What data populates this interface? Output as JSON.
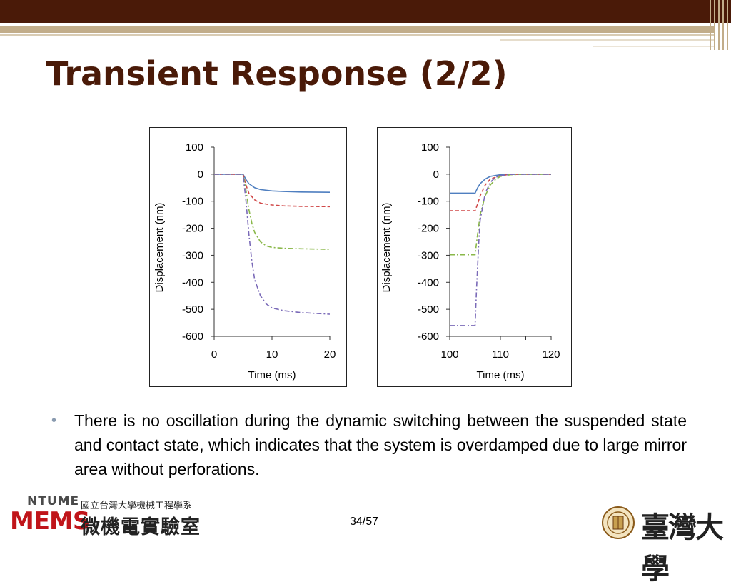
{
  "slide": {
    "title": "Transient Response (2/2)",
    "bullet": "There is no oscillation during the dynamic switching between the suspended state and contact state, which indicates that the system is overdamped due to large mirror area without perforations.",
    "page_number": "34/57",
    "logo_left_small": "NTUME",
    "logo_left_big": "MEMS",
    "dept_small": "國立台灣大學機械工程學系",
    "dept_big": "微機電實驗室",
    "university": "臺灣大學"
  },
  "colors": {
    "topbar": "#4a1a08",
    "title": "#4a1a08",
    "series": [
      "#4f7fc0",
      "#d04848",
      "#8ab84a",
      "#7a6ab8"
    ]
  },
  "chart_data": [
    {
      "type": "line",
      "xlabel": "Time (ms)",
      "ylabel": "Displacement (nm)",
      "xlim": [
        0,
        20
      ],
      "ylim": [
        -600,
        100
      ],
      "xticks": [
        0,
        10,
        20
      ],
      "yticks": [
        100,
        0,
        -100,
        -200,
        -300,
        -400,
        -500,
        -600
      ],
      "grid": false,
      "series": [
        {
          "line_style": "solid",
          "color": "#4f7fc0",
          "x": [
            0,
            5,
            5.5,
            6,
            7,
            8,
            10,
            12,
            15,
            20
          ],
          "y": [
            0,
            0,
            -20,
            -35,
            -50,
            -57,
            -62,
            -64,
            -66,
            -67
          ]
        },
        {
          "line_style": "dashed",
          "color": "#d04848",
          "x": [
            0,
            5,
            5.5,
            6,
            7,
            8,
            10,
            12,
            15,
            20
          ],
          "y": [
            0,
            0,
            -40,
            -70,
            -95,
            -107,
            -114,
            -117,
            -119,
            -120
          ]
        },
        {
          "line_style": "dash-dot",
          "color": "#8ab84a",
          "x": [
            0,
            5,
            5.5,
            6,
            6.5,
            7,
            8,
            9,
            10,
            12,
            15,
            20
          ],
          "y": [
            0,
            0,
            -60,
            -130,
            -180,
            -215,
            -250,
            -265,
            -271,
            -274,
            -276,
            -278
          ]
        },
        {
          "line_style": "dash-dot",
          "color": "#7a6ab8",
          "x": [
            0,
            5,
            5.5,
            6,
            6.5,
            7,
            8,
            9,
            10,
            12,
            15,
            20
          ],
          "y": [
            0,
            0,
            -100,
            -220,
            -320,
            -390,
            -450,
            -480,
            -495,
            -505,
            -512,
            -518
          ]
        }
      ]
    },
    {
      "type": "line",
      "xlabel": "Time (ms)",
      "ylabel": "Displacement (nm)",
      "xlim": [
        100,
        120
      ],
      "ylim": [
        -600,
        100
      ],
      "xticks": [
        100,
        110,
        120
      ],
      "yticks": [
        100,
        0,
        -100,
        -200,
        -300,
        -400,
        -500,
        -600
      ],
      "grid": false,
      "series": [
        {
          "line_style": "solid",
          "color": "#4f7fc0",
          "x": [
            100,
            105,
            105.5,
            106,
            107,
            108,
            110,
            112,
            115,
            120
          ],
          "y": [
            -70,
            -70,
            -50,
            -35,
            -18,
            -8,
            -2,
            0,
            0,
            0
          ]
        },
        {
          "line_style": "dashed",
          "color": "#d04848",
          "x": [
            100,
            105,
            105.5,
            106,
            107,
            108,
            110,
            112,
            115,
            120
          ],
          "y": [
            -135,
            -135,
            -110,
            -80,
            -40,
            -18,
            -5,
            -1,
            0,
            0
          ]
        },
        {
          "line_style": "dash-dot",
          "color": "#8ab84a",
          "x": [
            100,
            105,
            105.5,
            106,
            107,
            108,
            109,
            110,
            112,
            115,
            120
          ],
          "y": [
            -298,
            -298,
            -220,
            -150,
            -80,
            -40,
            -20,
            -8,
            -2,
            0,
            0
          ]
        },
        {
          "line_style": "dash-dot",
          "color": "#7a6ab8",
          "x": [
            100,
            105,
            105.3,
            105.7,
            106,
            107,
            108,
            109,
            110,
            112,
            115,
            120
          ],
          "y": [
            -560,
            -560,
            -420,
            -260,
            -170,
            -70,
            -30,
            -12,
            -5,
            -1,
            0,
            0
          ]
        }
      ]
    }
  ]
}
